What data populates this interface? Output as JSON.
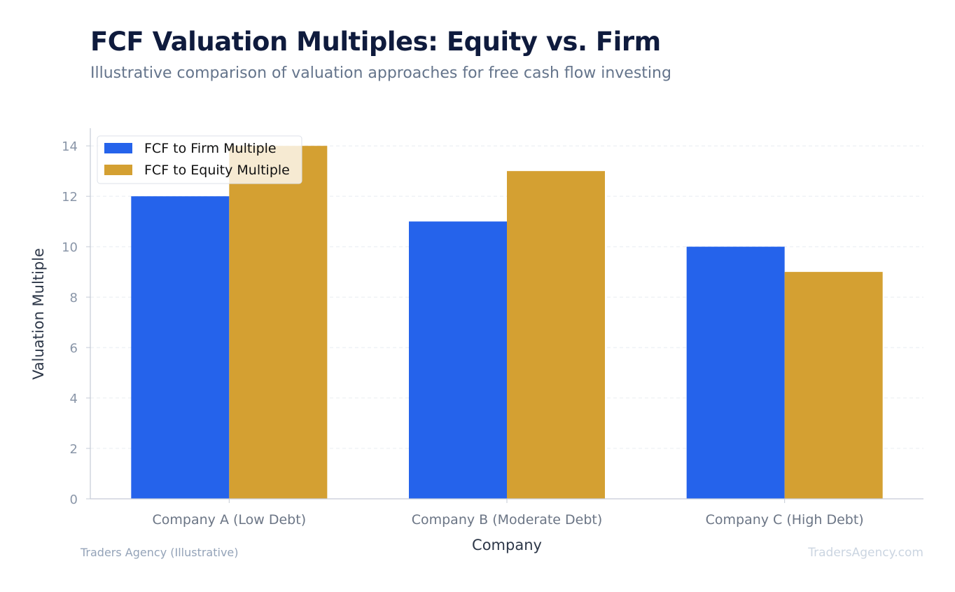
{
  "chart_data": {
    "type": "bar",
    "title": "FCF Valuation Multiples: Equity vs. Firm",
    "subtitle": "Illustrative comparison of valuation approaches for free cash flow investing",
    "xlabel": "Company",
    "ylabel": "Valuation Multiple",
    "categories": [
      "Company A (Low Debt)",
      "Company B (Moderate Debt)",
      "Company C (High Debt)"
    ],
    "series": [
      {
        "name": "FCF to Firm Multiple",
        "values": [
          12,
          11,
          10
        ],
        "color": "#2563eb"
      },
      {
        "name": "FCF to Equity Multiple",
        "values": [
          14,
          13,
          9
        ],
        "color": "#d4a032"
      }
    ],
    "ylim": [
      0,
      14.7
    ],
    "yticks": [
      0,
      2,
      4,
      6,
      8,
      10,
      12,
      14
    ],
    "grid": true,
    "legend_position": "top-left"
  },
  "footer": {
    "source": "Traders Agency (Illustrative)",
    "watermark": "TradersAgency.com"
  }
}
